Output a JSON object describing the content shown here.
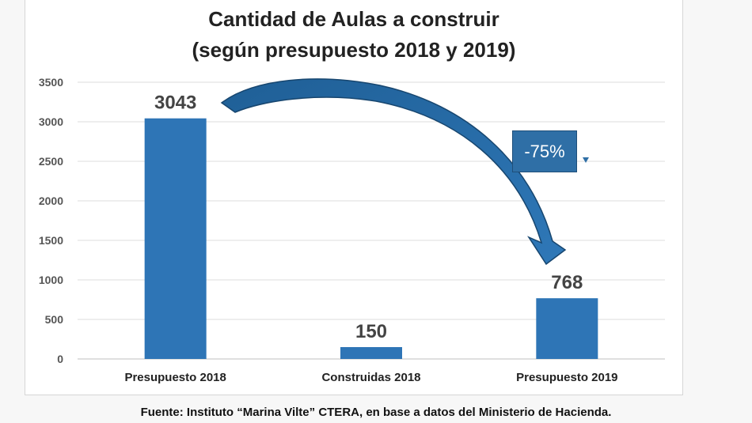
{
  "chart_data": {
    "type": "bar",
    "title": [
      "Cantidad de Aulas a construir",
      "(según presupuesto 2018 y 2019)"
    ],
    "categories": [
      "Presupuesto 2018",
      "Construidas 2018",
      "Presupuesto 2019"
    ],
    "values": [
      3043,
      150,
      768
    ],
    "data_labels": [
      "3043",
      "150",
      "768"
    ],
    "ylim": [
      0,
      3500
    ],
    "yticks": [
      0,
      500,
      1000,
      1500,
      2000,
      2500,
      3000,
      3500
    ],
    "xlabel": "",
    "ylabel": "",
    "grid": true,
    "bar_color": "#2e75b6",
    "annotation": {
      "text": "-75%",
      "from_category": "Presupuesto 2018",
      "to_category": "Presupuesto 2019",
      "color": "#2f6fa6"
    }
  },
  "source": "Fuente: Instituto “Marina Vilte” CTERA, en base a datos del Ministerio de Hacienda."
}
